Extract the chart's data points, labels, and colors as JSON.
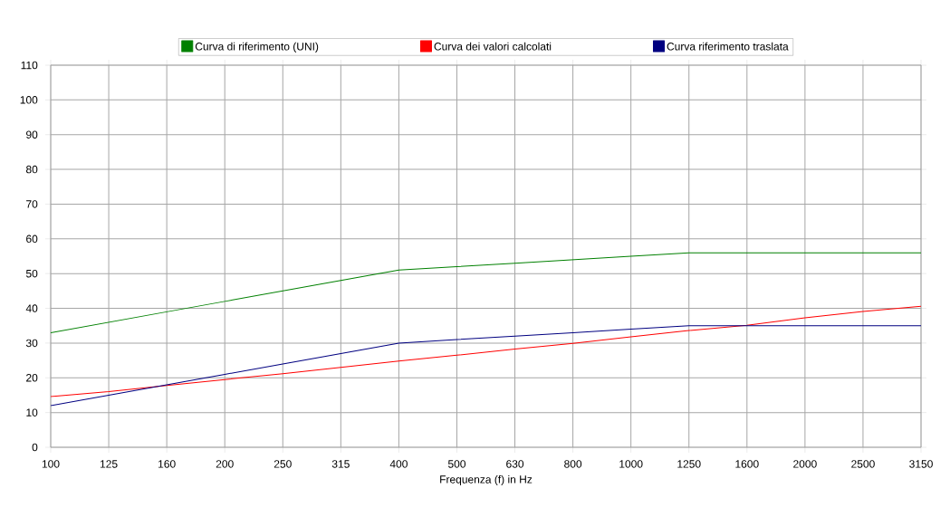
{
  "chart_data": {
    "type": "line",
    "xlabel": "Frequenza (f) in Hz",
    "categories": [
      "100",
      "125",
      "160",
      "200",
      "250",
      "315",
      "400",
      "500",
      "630",
      "800",
      "1000",
      "1250",
      "1600",
      "2000",
      "2500",
      "3150"
    ],
    "series": [
      {
        "name": "Curva di riferimento (UNI)",
        "color": "#008000",
        "values": [
          33,
          36,
          39,
          42,
          45,
          48,
          51,
          52,
          53,
          54,
          55,
          56,
          56,
          56,
          56,
          56
        ]
      },
      {
        "name": "Curva dei valori calcolati",
        "color": "#ff0000",
        "values": [
          14.6,
          16,
          17.8,
          19.5,
          21.2,
          23,
          24.8,
          26.5,
          28.3,
          29.9,
          31.8,
          33.6,
          35.1,
          37.3,
          39.1,
          40.6
        ]
      },
      {
        "name": "Curva riferimento traslata",
        "color": "#000080",
        "values": [
          12,
          15,
          18,
          21,
          24,
          27,
          30,
          31,
          32,
          33,
          34,
          35,
          35,
          35,
          35,
          35
        ]
      }
    ],
    "ylim": [
      0,
      110
    ],
    "yticks": [
      0,
      10,
      20,
      30,
      40,
      50,
      60,
      70,
      80,
      90,
      100,
      110
    ],
    "grid": true,
    "legend": "top",
    "marker": "none",
    "line_style": "solid"
  }
}
